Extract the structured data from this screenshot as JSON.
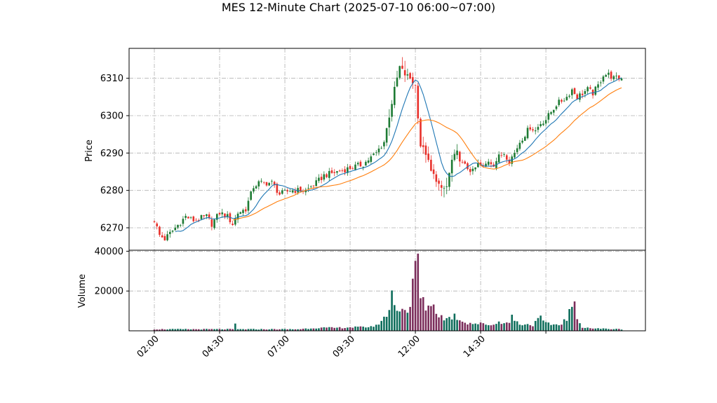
{
  "chart_data": [
    {
      "type": "candlestick",
      "panel": "price",
      "title": "MES 12-Minute Chart (2025-07-10 06:00~07:00)",
      "ylabel": "Price",
      "ylim": [
        6264,
        6318
      ],
      "yticks": [
        6270,
        6280,
        6290,
        6300,
        6310
      ],
      "xticks": [
        "02:00",
        "04:30",
        "07:00",
        "09:30",
        "12:00",
        "14:30"
      ],
      "bar_count": 180,
      "grid": true,
      "colors": {
        "up": "#1e7b34",
        "down": "#e8302a"
      },
      "close_anchors": [
        [
          0,
          6272
        ],
        [
          2,
          6268
        ],
        [
          4,
          6267
        ],
        [
          8,
          6270
        ],
        [
          12,
          6273
        ],
        [
          15,
          6272
        ],
        [
          20,
          6273
        ],
        [
          22,
          6271
        ],
        [
          25,
          6274
        ],
        [
          28,
          6273
        ],
        [
          30,
          6271
        ],
        [
          32,
          6274
        ],
        [
          35,
          6275
        ],
        [
          38,
          6281
        ],
        [
          40,
          6282
        ],
        [
          45,
          6282
        ],
        [
          48,
          6279
        ],
        [
          52,
          6280
        ],
        [
          58,
          6280
        ],
        [
          62,
          6282
        ],
        [
          65,
          6284
        ],
        [
          70,
          6285
        ],
        [
          75,
          6286
        ],
        [
          80,
          6287
        ],
        [
          85,
          6290
        ],
        [
          88,
          6293
        ],
        [
          90,
          6300
        ],
        [
          92,
          6307
        ],
        [
          94,
          6313
        ],
        [
          96,
          6311
        ],
        [
          98,
          6310
        ],
        [
          100,
          6308
        ],
        [
          101,
          6300
        ],
        [
          102,
          6292
        ],
        [
          104,
          6290
        ],
        [
          106,
          6285
        ],
        [
          108,
          6283
        ],
        [
          110,
          6280
        ],
        [
          112,
          6281
        ],
        [
          114,
          6288
        ],
        [
          116,
          6290
        ],
        [
          118,
          6287
        ],
        [
          120,
          6286
        ],
        [
          122,
          6285
        ],
        [
          124,
          6287
        ],
        [
          126,
          6286
        ],
        [
          128,
          6288
        ],
        [
          130,
          6287
        ],
        [
          132,
          6289
        ],
        [
          134,
          6290
        ],
        [
          136,
          6288
        ],
        [
          138,
          6290
        ],
        [
          140,
          6293
        ],
        [
          142,
          6295
        ],
        [
          144,
          6297
        ],
        [
          146,
          6296
        ],
        [
          148,
          6298
        ],
        [
          150,
          6299
        ],
        [
          152,
          6301
        ],
        [
          154,
          6303
        ],
        [
          156,
          6304
        ],
        [
          158,
          6305
        ],
        [
          160,
          6307
        ],
        [
          162,
          6305
        ],
        [
          164,
          6306
        ],
        [
          166,
          6307
        ],
        [
          168,
          6306
        ],
        [
          170,
          6308
        ],
        [
          172,
          6311
        ],
        [
          174,
          6311
        ],
        [
          176,
          6310
        ],
        [
          179,
          6310
        ]
      ],
      "series": [
        {
          "name": "",
          "color": "#1f77b4",
          "window": 10,
          "start": 8
        },
        {
          "name": "",
          "color": "#ff7f0e",
          "window": 25,
          "start": 30
        }
      ]
    },
    {
      "type": "bar",
      "panel": "volume",
      "ylabel": "Volume",
      "ylim": [
        0,
        40500
      ],
      "yticks": [
        20000,
        40000
      ],
      "colors": {
        "up": "#0f6e5c",
        "down": "#7b2d5b"
      },
      "volume_anchors": [
        [
          0,
          800
        ],
        [
          30,
          800
        ],
        [
          31,
          3000
        ],
        [
          32,
          800
        ],
        [
          55,
          800
        ],
        [
          62,
          1500
        ],
        [
          70,
          1500
        ],
        [
          75,
          1800
        ],
        [
          80,
          1800
        ],
        [
          85,
          2500
        ],
        [
          86,
          4000
        ],
        [
          88,
          6000
        ],
        [
          90,
          11000
        ],
        [
          91,
          20500
        ],
        [
          92,
          11500
        ],
        [
          94,
          12000
        ],
        [
          96,
          10500
        ],
        [
          98,
          11000
        ],
        [
          99,
          22000
        ],
        [
          100,
          33000
        ],
        [
          101,
          39000
        ],
        [
          102,
          16000
        ],
        [
          104,
          12000
        ],
        [
          106,
          14000
        ],
        [
          108,
          10000
        ],
        [
          110,
          7000
        ],
        [
          112,
          6000
        ],
        [
          115,
          7500
        ],
        [
          118,
          5000
        ],
        [
          120,
          4000
        ],
        [
          125,
          3500
        ],
        [
          130,
          3000
        ],
        [
          132,
          4500
        ],
        [
          134,
          4500
        ],
        [
          136,
          3500
        ],
        [
          137,
          9500
        ],
        [
          138,
          5000
        ],
        [
          140,
          3500
        ],
        [
          145,
          3000
        ],
        [
          148,
          6500
        ],
        [
          150,
          3500
        ],
        [
          155,
          3000
        ],
        [
          158,
          6000
        ],
        [
          160,
          12500
        ],
        [
          161,
          12000
        ],
        [
          162,
          5500
        ],
        [
          164,
          2000
        ],
        [
          168,
          1200
        ],
        [
          179,
          800
        ]
      ]
    }
  ]
}
